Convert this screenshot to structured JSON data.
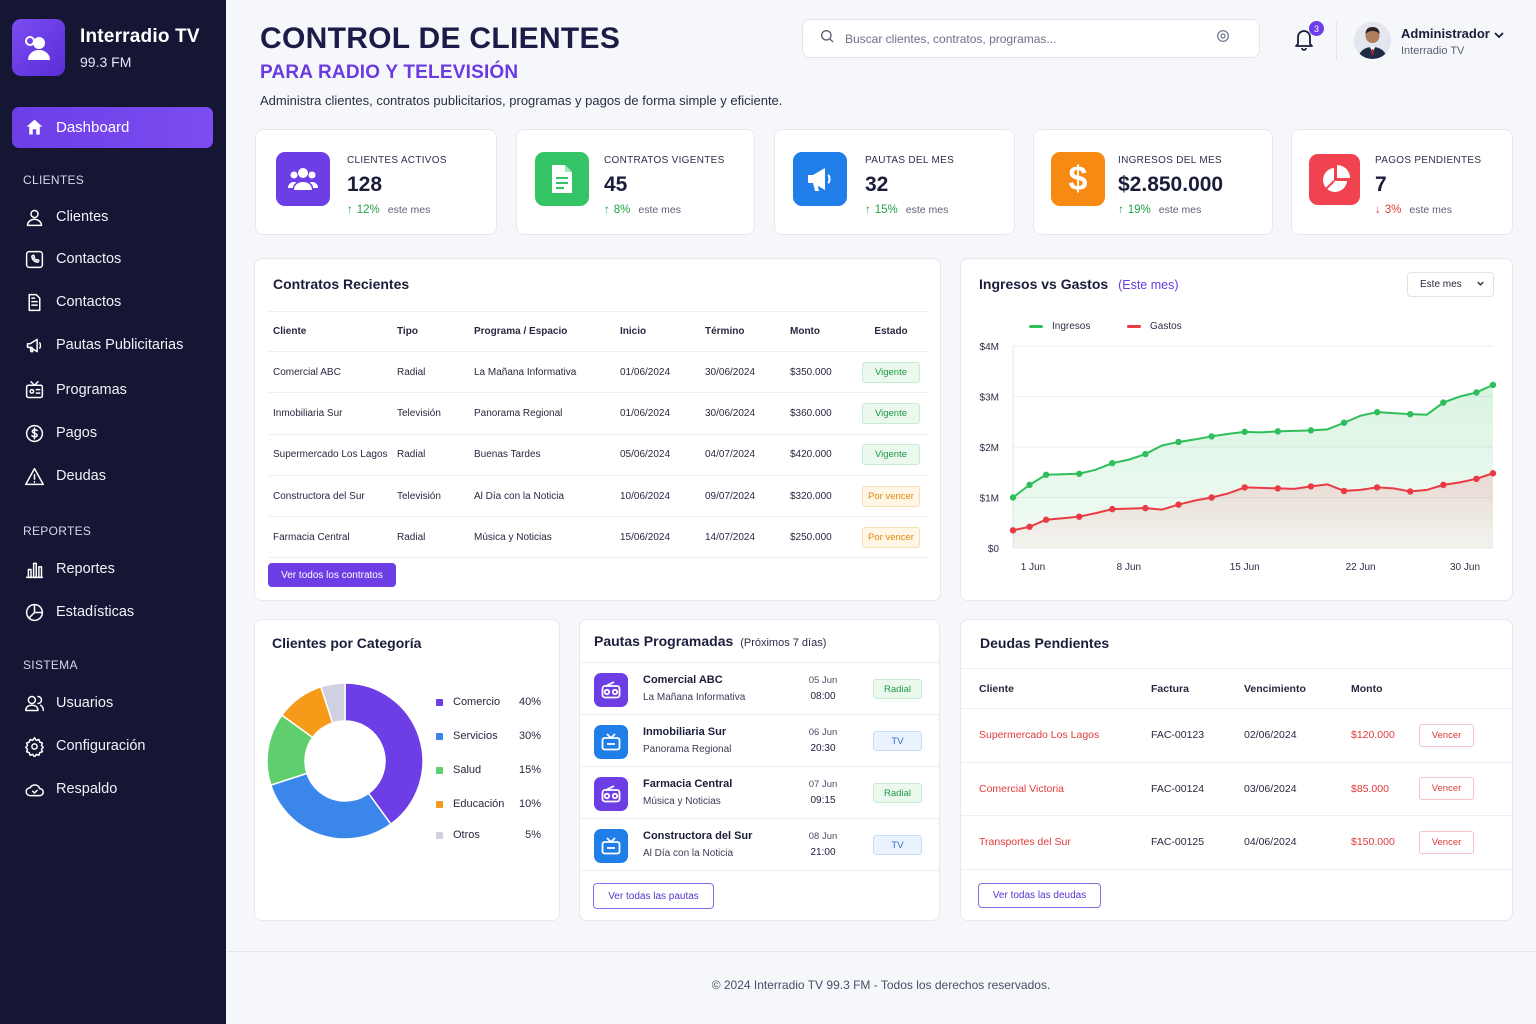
{
  "brand": {
    "name": "Interradio TV",
    "sub": "99.3 FM"
  },
  "nav": {
    "active": "Dashboard",
    "sections": [
      "CLIENTES",
      "REPORTES",
      "SISTEMA"
    ],
    "items": [
      "Clientes",
      "Contactos",
      "Contactos",
      "Pautas Publicitarias",
      "Programas",
      "Pagos",
      "Deudas",
      "Reportes",
      "Estadísticas",
      "Usuarios",
      "Configuración",
      "Respaldo"
    ]
  },
  "header": {
    "title": "CONTROL DE CLIENTES",
    "subtitle": "PARA RADIO Y TELEVISIÓN",
    "description": "Administra clientes, contratos publicitarios, programas y pagos de forma simple y eficiente.",
    "search_placeholder": "Buscar clientes, contratos, programas...",
    "notifications": "3",
    "user_name": "Administrador",
    "user_org": "Interradio TV"
  },
  "stats": [
    {
      "label": "CLIENTES ACTIVOS",
      "value": "128",
      "trend": "12%",
      "period": "este mes",
      "color": "#6d3ee6"
    },
    {
      "label": "CONTRATOS VIGENTES",
      "value": "45",
      "trend": "8%",
      "period": "este mes",
      "color": "#34c365"
    },
    {
      "label": "PAUTAS DEL MES",
      "value": "32",
      "trend": "15%",
      "period": "este mes",
      "color": "#1f7ee8"
    },
    {
      "label": "INGRESOS DEL MES",
      "value": "$2.850.000",
      "trend": "19%",
      "period": "este mes",
      "color": "#f78a12"
    },
    {
      "label": "PAGOS PENDIENTES",
      "value": "7",
      "trend": "3%",
      "period": "este mes",
      "color": "#f0434f"
    }
  ],
  "contracts": {
    "title": "Contratos Recientes",
    "headers": [
      "Cliente",
      "Tipo",
      "Programa / Espacio",
      "Inicio",
      "Término",
      "Monto",
      "Estado"
    ],
    "rows": [
      [
        "Comercial ABC",
        "Radial",
        "La Mañana Informativa",
        "01/06/2024",
        "30/06/2024",
        "$350.000",
        "Vigente"
      ],
      [
        "Inmobiliaria Sur",
        "Televisión",
        "Panorama Regional",
        "01/06/2024",
        "30/06/2024",
        "$360.000",
        "Vigente"
      ],
      [
        "Supermercado Los Lagos",
        "Radial",
        "Buenas Tardes",
        "05/06/2024",
        "04/07/2024",
        "$420.000",
        "Vigente"
      ],
      [
        "Constructora del Sur",
        "Televisión",
        "Al Día con la Noticia",
        "10/06/2024",
        "09/07/2024",
        "$320.000",
        "Por vencer"
      ],
      [
        "Farmacia Central",
        "Radial",
        "Música y Noticias",
        "15/06/2024",
        "14/07/2024",
        "$250.000",
        "Por vencer"
      ]
    ],
    "button": "Ver todos los contratos"
  },
  "income_chart": {
    "title": "Ingresos vs Gastos",
    "title_note": "(Este mes)",
    "select": "Este mes"
  },
  "chart_data": [
    {
      "type": "area",
      "title": "Ingresos vs Gastos",
      "x": [
        "1 Jun",
        "2 Jun",
        "3 Jun",
        "4 Jun",
        "5 Jun",
        "6 Jun",
        "7 Jun",
        "8 Jun",
        "9 Jun",
        "10 Jun",
        "11 Jun",
        "12 Jun",
        "13 Jun",
        "14 Jun",
        "15 Jun",
        "16 Jun",
        "17 Jun",
        "18 Jun",
        "19 Jun",
        "20 Jun",
        "21 Jun",
        "22 Jun",
        "23 Jun",
        "24 Jun",
        "25 Jun",
        "26 Jun",
        "27 Jun",
        "28 Jun",
        "29 Jun",
        "30 Jun"
      ],
      "xticks": [
        "1 Jun",
        "8 Jun",
        "15 Jun",
        "22 Jun",
        "30 Jun"
      ],
      "yticks": [
        "$0",
        "$1M",
        "$2M",
        "$3M",
        "$4M"
      ],
      "ylim": [
        0,
        4000000
      ],
      "series": [
        {
          "name": "Ingresos",
          "color": "#2fbf5a",
          "values": [
            1000000,
            1250000,
            1450000,
            1460000,
            1470000,
            1550000,
            1680000,
            1750000,
            1860000,
            2030000,
            2100000,
            2150000,
            2210000,
            2260000,
            2300000,
            2290000,
            2310000,
            2320000,
            2330000,
            2350000,
            2480000,
            2620000,
            2690000,
            2670000,
            2650000,
            2640000,
            2880000,
            3000000,
            3080000,
            3230000
          ]
        },
        {
          "name": "Gastos",
          "color": "#ea3b45",
          "values": [
            350000,
            420000,
            560000,
            590000,
            620000,
            690000,
            770000,
            780000,
            790000,
            760000,
            860000,
            940000,
            1000000,
            1080000,
            1200000,
            1190000,
            1180000,
            1170000,
            1220000,
            1260000,
            1130000,
            1150000,
            1200000,
            1180000,
            1120000,
            1150000,
            1250000,
            1300000,
            1370000,
            1480000
          ]
        }
      ],
      "legend": "top-left",
      "grid": true
    },
    {
      "type": "pie",
      "title": "Clientes por Categoría",
      "categories": [
        "Comercio",
        "Servicios",
        "Salud",
        "Educación",
        "Otros"
      ],
      "values": [
        40,
        30,
        15,
        10,
        5
      ],
      "colors": [
        "#6d3ee6",
        "#3b86ea",
        "#5ecf6c",
        "#f69a1a",
        "#cfd1e0"
      ]
    }
  ],
  "categories_panel": {
    "title": "Clientes por Categoría",
    "items": [
      {
        "name": "Comercio",
        "pct": "40%"
      },
      {
        "name": "Servicios",
        "pct": "30%"
      },
      {
        "name": "Salud",
        "pct": "15%"
      },
      {
        "name": "Educación",
        "pct": "10%"
      },
      {
        "name": "Otros",
        "pct": "5%"
      }
    ]
  },
  "schedule": {
    "title": "Pautas Programadas",
    "note": "(Próximos 7 días)",
    "items": [
      {
        "client": "Comercial ABC",
        "program": "La Mañana Informativa",
        "date": "05 Jun",
        "time": "08:00",
        "type": "Radial"
      },
      {
        "client": "Inmobiliaria Sur",
        "program": "Panorama Regional",
        "date": "06 Jun",
        "time": "20:30",
        "type": "TV"
      },
      {
        "client": "Farmacia Central",
        "program": "Música y Noticias",
        "date": "07 Jun",
        "time": "09:15",
        "type": "Radial"
      },
      {
        "client": "Constructora del Sur",
        "program": "Al Día con la Noticia",
        "date": "08 Jun",
        "time": "21:00",
        "type": "TV"
      }
    ],
    "button": "Ver todas las pautas"
  },
  "debts": {
    "title": "Deudas Pendientes",
    "headers": [
      "Cliente",
      "Factura",
      "Vencimiento",
      "Monto",
      ""
    ],
    "rows": [
      [
        "Supermercado Los Lagos",
        "FAC-00123",
        "02/06/2024",
        "$120.000",
        "Vencer"
      ],
      [
        "Comercial Victoria",
        "FAC-00124",
        "03/06/2024",
        "$85.000",
        "Vencer"
      ],
      [
        "Transportes del Sur",
        "FAC-00125",
        "04/06/2024",
        "$150.000",
        "Vencer"
      ]
    ],
    "button": "Ver todas las deudas"
  },
  "footer": "© 2024 Interradio TV 99.3 FM - Todos los derechos reservados."
}
